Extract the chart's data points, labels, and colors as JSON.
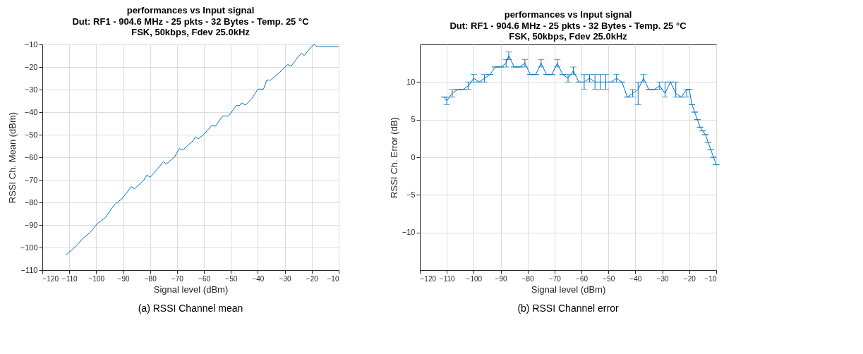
{
  "chart_data": [
    {
      "type": "line",
      "title": "performances vs Input signal",
      "subtitle": "Dut: RF1 - 904.6 MHz - 25 pkts - 32 Bytes - Temp. 25 °C\nFSK, 50kbps, Fdev 25.0kHz",
      "xlabel": "Signal level (dBm)",
      "ylabel": "RSSI Ch. Mean (dBm)",
      "annotations": [
        "(a)  RSSI Channel mean"
      ],
      "x": [
        -111.2,
        -107.3,
        -104.9,
        -102.2,
        -99.5,
        -96.8,
        -93.2,
        -90.5,
        -88.2,
        -87,
        -85.8,
        -82.3,
        -81.2,
        -80,
        -77.3,
        -75.1,
        -74,
        -71,
        -69.1,
        -67.9,
        -64,
        -63.1,
        -62.1,
        -60.1,
        -57,
        -55.8,
        -53.1,
        -50.9,
        -48,
        -46.8,
        -46,
        -44.6,
        -42.2,
        -40,
        -37.9,
        -36.7,
        -35.2,
        -31.2,
        -28.9,
        -27.7,
        -25,
        -23.8,
        -22.8,
        -20.3,
        -19.1,
        -18,
        -10
      ],
      "series": [
        {
          "color": "#0072bd",
          "values": [
            -103.3,
            -99.2,
            -95.9,
            -93.3,
            -89.3,
            -87,
            -80.9,
            -78.5,
            -75,
            -73,
            -74,
            -70.1,
            -67.9,
            -68.9,
            -65.2,
            -62,
            -63,
            -60,
            -56.1,
            -56.8,
            -52.6,
            -50.9,
            -51.9,
            -49.9,
            -45.8,
            -46.3,
            -41.8,
            -41.7,
            -37.1,
            -37.1,
            -35.9,
            -36.9,
            -33.9,
            -29.8,
            -29.8,
            -25.8,
            -25.8,
            -21.6,
            -18.9,
            -19.7,
            -15.4,
            -13.9,
            -14.9,
            -11.2,
            -10,
            -11,
            -11
          ]
        }
      ],
      "xlim": [
        -120,
        -10
      ],
      "xticks": [
        -120,
        -110,
        -100,
        -90,
        -80,
        -70,
        -60,
        -50,
        -40,
        -30,
        -20,
        -10
      ],
      "ylim": [
        -110,
        -10
      ],
      "yticks": [
        -110,
        -100,
        -90,
        -80,
        -70,
        -60,
        -50,
        -40,
        -30,
        -20,
        -10
      ],
      "grid": true
    },
    {
      "type": "line",
      "title": "performances vs Input signal",
      "subtitle": "Dut: RF1 - 904.6 MHz - 25 pkts - 32 Bytes - Temp. 25 °C\nFSK, 50kbps, Fdev 25.0kHz",
      "xlabel": "Signal level (dBm)",
      "ylabel": "RSSI Ch. Error (dB)",
      "annotations": [
        "(b)  RSSI Channel error"
      ],
      "x": [
        -111,
        -110,
        -108,
        -106,
        -104,
        -102,
        -100,
        -98,
        -96,
        -94,
        -92,
        -90,
        -88,
        -87,
        -85,
        -83,
        -81,
        -79,
        -77,
        -75,
        -73,
        -71,
        -69,
        -67,
        -65,
        -63,
        -61,
        -59,
        -57,
        -55,
        -53,
        -51,
        -49,
        -47,
        -45,
        -43,
        -41,
        -39,
        -37,
        -35,
        -33,
        -31,
        -29,
        -27,
        -25,
        -23,
        -21,
        -20,
        -19,
        -18,
        -17,
        -16,
        -15,
        -14,
        -13,
        -12,
        -11,
        -10
      ],
      "series": [
        {
          "color": "#0072bd",
          "values": [
            8,
            7.5,
            8.5,
            9,
            9,
            9.5,
            10.5,
            10,
            10.5,
            11,
            12,
            12,
            12.5,
            13.5,
            12,
            12,
            12.5,
            11,
            11,
            12.5,
            11,
            11,
            12.5,
            11,
            10.5,
            11.5,
            10,
            10,
            10.5,
            10,
            10,
            10,
            10,
            10.5,
            10,
            8,
            8.5,
            9,
            10.5,
            9,
            9,
            9.5,
            8.5,
            10,
            8.5,
            8,
            9,
            9,
            7,
            6,
            5,
            4,
            3.5,
            3,
            2,
            1,
            0,
            -1
          ],
          "errors": [
            [
              8,
              8
            ],
            [
              7,
              8
            ],
            [
              8,
              9
            ],
            [
              9,
              9
            ],
            [
              9,
              9
            ],
            [
              9,
              10
            ],
            [
              10,
              11
            ],
            [
              10,
              10
            ],
            [
              10,
              11
            ],
            [
              11,
              11
            ],
            [
              12,
              12
            ],
            [
              12,
              12
            ],
            [
              12,
              13
            ],
            [
              13,
              14
            ],
            [
              12,
              12
            ],
            [
              12,
              12
            ],
            [
              12,
              13
            ],
            [
              11,
              11
            ],
            [
              11,
              11
            ],
            [
              12,
              13
            ],
            [
              11,
              11
            ],
            [
              11,
              11
            ],
            [
              12,
              13
            ],
            [
              11,
              11
            ],
            [
              10,
              11
            ],
            [
              11,
              12
            ],
            [
              10,
              10
            ],
            [
              9,
              11
            ],
            [
              10,
              11
            ],
            [
              9,
              11
            ],
            [
              9,
              11
            ],
            [
              9,
              11
            ],
            [
              10,
              10
            ],
            [
              10,
              11
            ],
            [
              10,
              10
            ],
            [
              8,
              8
            ],
            [
              8,
              9
            ],
            [
              7,
              10
            ],
            [
              10,
              11
            ],
            [
              9,
              9
            ],
            [
              9,
              9
            ],
            [
              9,
              10
            ],
            [
              8,
              10
            ],
            [
              10,
              10
            ],
            [
              8,
              10
            ],
            [
              8,
              8
            ],
            [
              8,
              9
            ],
            [
              9,
              9
            ],
            [
              7,
              7
            ],
            [
              6,
              6
            ],
            [
              5,
              5
            ],
            [
              4,
              4
            ],
            [
              3.5,
              3.5
            ],
            [
              3,
              3
            ],
            [
              2,
              2
            ],
            [
              1,
              1
            ],
            [
              0,
              0
            ],
            [
              -1,
              -1
            ]
          ]
        }
      ],
      "xlim": [
        -120,
        -10
      ],
      "xticks": [
        -120,
        -110,
        -100,
        -90,
        -80,
        -70,
        -60,
        -50,
        -40,
        -30,
        -20,
        -10
      ],
      "ylim": [
        -15,
        15
      ],
      "yticks": [
        -10,
        -5,
        0,
        5,
        10
      ],
      "grid": true
    }
  ]
}
